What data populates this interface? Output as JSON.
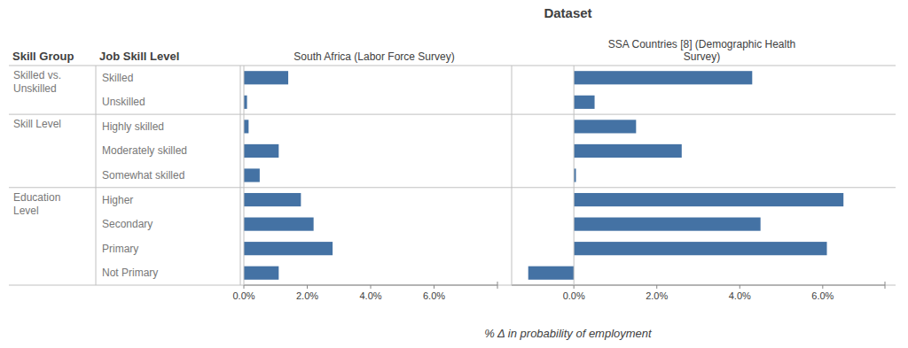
{
  "chart_data": [
    {
      "type": "bar",
      "orientation": "horizontal",
      "title": "Dataset",
      "subtitle": "South Africa (Labor Force Survey)",
      "xlabel": "% Δ in probability of employment",
      "ylabel": "Job Skill Level",
      "categories": [
        "Skilled",
        "Unskilled",
        "Highly skilled",
        "Moderately skilled",
        "Somewhat skilled",
        "Higher",
        "Secondary",
        "Primary",
        "Not Primary"
      ],
      "values": [
        1.4,
        0.1,
        0.15,
        1.1,
        0.5,
        1.8,
        2.2,
        2.8,
        1.1
      ],
      "color": "#4472a4",
      "xlim": [
        0,
        8
      ],
      "xticks": [
        {
          "value": 0,
          "label": "0.0%"
        },
        {
          "value": 2,
          "label": "2.0%"
        },
        {
          "value": 4,
          "label": "4.0%"
        },
        {
          "value": 6,
          "label": "6.0%"
        }
      ],
      "grid": false,
      "annotations": [
        {
          "text": "Skill Group"
        },
        {
          "text": "Skilled vs.\nUnskilled",
          "section_start": 0,
          "section_end": 1
        },
        {
          "text": "Skill Level",
          "section_start": 2,
          "section_end": 4
        },
        {
          "text": "Education\nLevel",
          "section_start": 5,
          "section_end": 8
        }
      ]
    },
    {
      "type": "bar",
      "orientation": "horizontal",
      "subtitle": "SSA Countries [8] (Demographic Health\nSurvey)",
      "values": [
        4.3,
        0.5,
        1.5,
        2.6,
        0.05,
        6.5,
        4.5,
        6.1,
        -1.1
      ],
      "color": "#4472a4",
      "xlim": [
        -1.5,
        7.5
      ],
      "xticks": [
        {
          "value": 0,
          "label": "0.0%"
        },
        {
          "value": 2,
          "label": "2.0%"
        },
        {
          "value": 4,
          "label": "4.0%"
        },
        {
          "value": 6,
          "label": "6.0%"
        }
      ],
      "grid": false
    }
  ]
}
